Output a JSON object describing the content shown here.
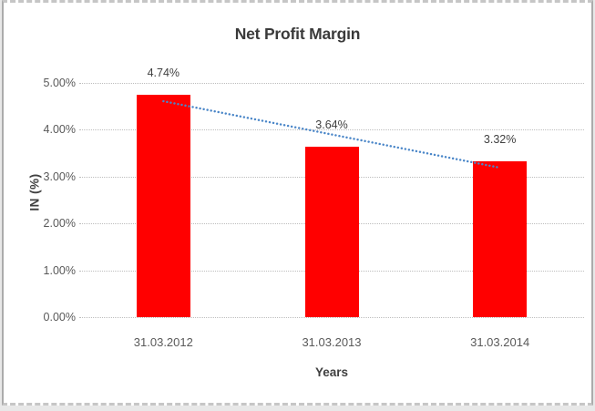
{
  "chart_data": {
    "type": "bar",
    "title": "Net Profit Margin",
    "categories": [
      "31.03.2012",
      "31.03.2013",
      "31.03.2014"
    ],
    "values": [
      4.74,
      3.64,
      3.32
    ],
    "data_labels": [
      "4.74%",
      "3.64%",
      "3.32%"
    ],
    "xlabel": "Years",
    "ylabel": "IN (%)",
    "ylim": [
      0,
      5
    ],
    "ytick_step": 1,
    "ytick_labels": [
      "0.00%",
      "1.00%",
      "2.00%",
      "3.00%",
      "4.00%",
      "5.00%"
    ],
    "grid": true,
    "legend": "none",
    "bar_color": "#ff0000",
    "gridline_color": "#bdbdbd",
    "tick_label_color": "#595959",
    "data_label_color": "#404040",
    "trendline": {
      "type": "linear",
      "style": "dotted",
      "color": "#4a86c8"
    }
  }
}
